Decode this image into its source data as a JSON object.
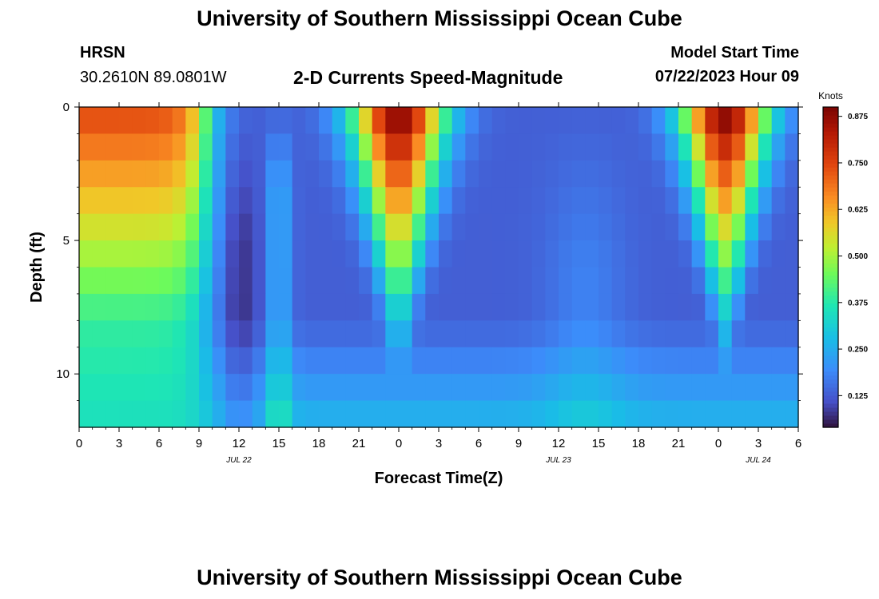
{
  "header": {
    "title": "University of Southern Mississippi Ocean Cube",
    "station": "HRSN",
    "coords": "30.2610N  89.0801W",
    "subtitle": "2-D Currents Speed-Magnitude",
    "model_label": "Model Start Time",
    "model_time": "07/22/2023 Hour 09"
  },
  "footer": {
    "title": "University of Southern Mississippi Ocean Cube"
  },
  "chart_data": {
    "type": "heatmap",
    "xlabel": "Forecast Time(Z)",
    "ylabel": "Depth (ft)",
    "x_unit": "hours from Jul 22 00Z",
    "xlim": [
      0,
      54
    ],
    "ylim": [
      0,
      12
    ],
    "x_ticks": [
      0,
      3,
      6,
      9,
      12,
      15,
      18,
      21,
      24,
      27,
      30,
      33,
      36,
      39,
      42,
      45,
      48,
      51,
      54
    ],
    "x_tick_labels": [
      "0",
      "3",
      "6",
      "9",
      "12",
      "15",
      "18",
      "21",
      "0",
      "3",
      "6",
      "9",
      "12",
      "15",
      "18",
      "21",
      "0",
      "3",
      "6"
    ],
    "y_ticks": [
      0,
      5,
      10
    ],
    "y_tick_labels": [
      "0",
      "5",
      "10"
    ],
    "date_labels": [
      {
        "x": 12,
        "text": "JUL 22"
      },
      {
        "x": 36,
        "text": "JUL 23"
      },
      {
        "x": 51,
        "text": "JUL 24"
      }
    ],
    "colorbar": {
      "title": "Knots",
      "min": 0.04,
      "max": 0.9,
      "ticks": [
        0.125,
        0.25,
        0.375,
        0.5,
        0.625,
        0.75,
        0.875
      ],
      "tick_labels": [
        "0.125",
        "0.250",
        "0.375",
        "0.500",
        "0.625",
        "0.750",
        "0.875"
      ],
      "colormap": "turbo"
    },
    "depths": [
      0.5,
      1.5,
      2.5,
      3.5,
      4.5,
      5.5,
      6.5,
      7.5,
      8.5,
      9.5,
      10.5,
      11.5
    ],
    "x_step": 1,
    "profiles": {
      "description_units": "knots",
      "surface_peaks": [
        {
          "x": 0,
          "value": 0.75
        },
        {
          "x": 24,
          "value": 0.9
        },
        {
          "x": 48,
          "value": 0.9
        }
      ]
    }
  }
}
